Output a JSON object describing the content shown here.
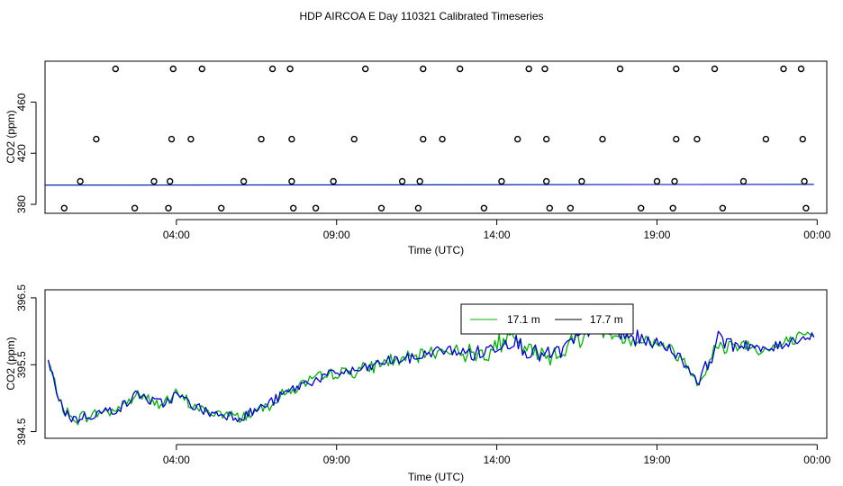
{
  "figure_title": "HDP AIRCOA E  Day 110321  Calibrated Timeseries",
  "colors": {
    "green": "#00b400",
    "blue": "#0000dc",
    "axis": "#000000"
  },
  "chart_data": [
    {
      "type": "scatter",
      "title": "HDP AIRCOA E  Day 110321  Calibrated Timeseries",
      "xlabel": "Time (UTC)",
      "ylabel": "CO2 (ppm)",
      "xlim": [
        -0.1,
        24.3
      ],
      "ylim": [
        373,
        492
      ],
      "x_ticks": [
        4,
        9,
        14,
        19,
        24
      ],
      "x_tick_labels": [
        "04:00",
        "09:00",
        "14:00",
        "19:00",
        "00:00"
      ],
      "y_ticks": [
        380,
        420,
        460
      ],
      "y_tick_labels": [
        "380",
        "420",
        "460"
      ],
      "grid": false,
      "calibration_points": [
        {
          "x": 2.1,
          "y": 486
        },
        {
          "x": 3.9,
          "y": 486
        },
        {
          "x": 4.8,
          "y": 486
        },
        {
          "x": 7.0,
          "y": 486
        },
        {
          "x": 7.55,
          "y": 486
        },
        {
          "x": 9.9,
          "y": 486
        },
        {
          "x": 11.7,
          "y": 486
        },
        {
          "x": 12.85,
          "y": 486
        },
        {
          "x": 15.0,
          "y": 486
        },
        {
          "x": 15.5,
          "y": 486
        },
        {
          "x": 17.85,
          "y": 486
        },
        {
          "x": 19.6,
          "y": 486
        },
        {
          "x": 20.8,
          "y": 486
        },
        {
          "x": 22.95,
          "y": 486
        },
        {
          "x": 23.5,
          "y": 486
        },
        {
          "x": 1.5,
          "y": 431
        },
        {
          "x": 3.85,
          "y": 431
        },
        {
          "x": 4.45,
          "y": 431
        },
        {
          "x": 6.65,
          "y": 431
        },
        {
          "x": 7.6,
          "y": 431
        },
        {
          "x": 9.55,
          "y": 431
        },
        {
          "x": 11.7,
          "y": 431
        },
        {
          "x": 12.3,
          "y": 431
        },
        {
          "x": 14.65,
          "y": 431
        },
        {
          "x": 15.55,
          "y": 431
        },
        {
          "x": 17.3,
          "y": 431
        },
        {
          "x": 19.6,
          "y": 431
        },
        {
          "x": 20.25,
          "y": 431
        },
        {
          "x": 22.4,
          "y": 431
        },
        {
          "x": 23.55,
          "y": 431
        },
        {
          "x": 1.0,
          "y": 398
        },
        {
          "x": 3.3,
          "y": 398
        },
        {
          "x": 3.8,
          "y": 398
        },
        {
          "x": 6.1,
          "y": 398
        },
        {
          "x": 7.6,
          "y": 398
        },
        {
          "x": 8.9,
          "y": 398
        },
        {
          "x": 11.05,
          "y": 398
        },
        {
          "x": 11.6,
          "y": 398
        },
        {
          "x": 14.15,
          "y": 398
        },
        {
          "x": 15.55,
          "y": 398
        },
        {
          "x": 16.65,
          "y": 398
        },
        {
          "x": 19.0,
          "y": 398
        },
        {
          "x": 19.55,
          "y": 398
        },
        {
          "x": 21.7,
          "y": 398
        },
        {
          "x": 23.6,
          "y": 398
        },
        {
          "x": 0.5,
          "y": 377
        },
        {
          "x": 2.7,
          "y": 377
        },
        {
          "x": 3.75,
          "y": 377
        },
        {
          "x": 5.4,
          "y": 377
        },
        {
          "x": 7.65,
          "y": 377
        },
        {
          "x": 8.35,
          "y": 377
        },
        {
          "x": 10.4,
          "y": 377
        },
        {
          "x": 11.55,
          "y": 377
        },
        {
          "x": 13.6,
          "y": 377
        },
        {
          "x": 15.65,
          "y": 377
        },
        {
          "x": 16.3,
          "y": 377
        },
        {
          "x": 18.5,
          "y": 377
        },
        {
          "x": 19.5,
          "y": 377
        },
        {
          "x": 21.05,
          "y": 377
        },
        {
          "x": 23.65,
          "y": 377
        }
      ],
      "series": [
        {
          "name": "17.1 m",
          "color": "#00b400",
          "x": [
            -0.1,
            23.9
          ],
          "values": [
            395.2,
            395.6
          ]
        },
        {
          "name": "17.7 m",
          "color": "#0000dc",
          "x": [
            -0.1,
            23.9
          ],
          "values": [
            395.0,
            395.6
          ]
        }
      ]
    },
    {
      "type": "line",
      "title": "",
      "xlabel": "Time (UTC)",
      "ylabel": "CO2 (ppm)",
      "xlim": [
        -0.1,
        24.3
      ],
      "ylim": [
        394.4,
        396.62
      ],
      "x_ticks": [
        4,
        9,
        14,
        19,
        24
      ],
      "x_tick_labels": [
        "04:00",
        "09:00",
        "14:00",
        "19:00",
        "00:00"
      ],
      "y_ticks": [
        394.5,
        395.5,
        396.5
      ],
      "y_tick_labels": [
        "394.5",
        "395.5",
        "396.5"
      ],
      "legend_position": "top-center",
      "grid": false,
      "anchors": {
        "x": [
          0,
          0.2,
          0.5,
          0.8,
          1.1,
          1.6,
          2.0,
          2.4,
          2.8,
          3.2,
          3.6,
          4.0,
          4.5,
          5.0,
          5.5,
          6.0,
          6.5,
          7.0,
          7.5,
          8.0,
          8.5,
          9.0,
          9.5,
          10.0,
          10.5,
          11.0,
          11.5,
          12.0,
          12.5,
          13.0,
          13.5,
          14.0,
          14.5,
          15.0,
          15.5,
          16.0,
          16.5,
          17.0,
          17.5,
          18.0,
          18.5,
          19.0,
          19.5,
          19.9,
          20.3,
          20.8,
          21.3,
          21.8,
          22.3,
          22.8,
          23.3,
          23.8
        ],
        "y": [
          395.55,
          395.2,
          394.8,
          394.68,
          394.72,
          394.78,
          394.82,
          394.9,
          395.08,
          394.95,
          394.92,
          395.05,
          394.9,
          394.78,
          394.76,
          394.72,
          394.82,
          394.95,
          395.1,
          395.22,
          395.3,
          395.38,
          395.4,
          395.45,
          395.55,
          395.58,
          395.6,
          395.7,
          395.72,
          395.68,
          395.66,
          395.8,
          395.88,
          395.7,
          395.62,
          395.7,
          395.88,
          396.08,
          396.0,
          395.92,
          395.88,
          395.82,
          395.72,
          395.5,
          395.25,
          395.72,
          395.8,
          395.82,
          395.7,
          395.78,
          395.88,
          395.92
        ]
      },
      "series": [
        {
          "name": "17.1 m",
          "color": "#00b400",
          "x_start": 0.0,
          "x_end": 23.9,
          "points": 360
        },
        {
          "name": "17.7 m",
          "color": "#0000dc",
          "x_start": 0.0,
          "x_end": 23.9,
          "points": 360
        }
      ]
    }
  ]
}
